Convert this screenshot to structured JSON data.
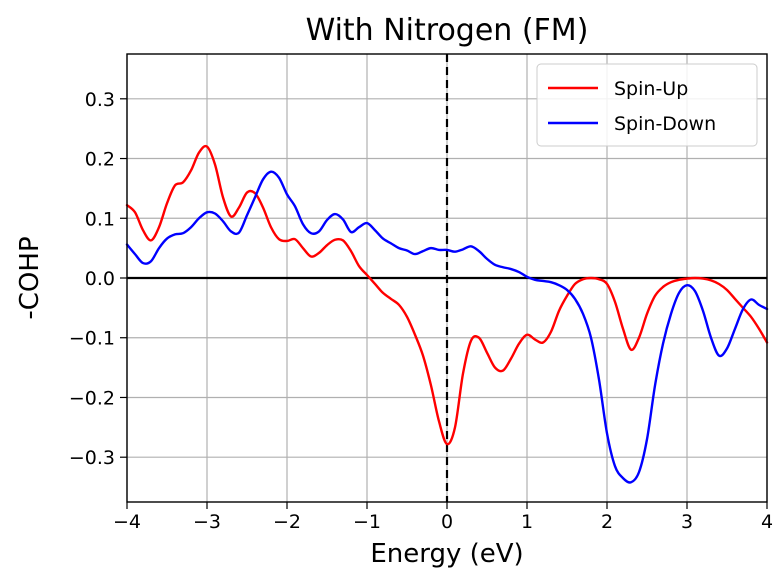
{
  "chart_data": {
    "type": "line",
    "title": "With Nitrogen (FM)",
    "xlabel": "Energy (eV)",
    "ylabel": "-COHP",
    "xlim": [
      -4,
      4
    ],
    "ylim": [
      -0.375,
      0.375
    ],
    "xticks": [
      -4,
      -3,
      -2,
      -1,
      0,
      1,
      2,
      3,
      4
    ],
    "xtick_labels": [
      "−4",
      "−3",
      "−2",
      "−1",
      "0",
      "1",
      "2",
      "3",
      "4"
    ],
    "yticks": [
      0.3,
      0.2,
      0.1,
      0.0,
      -0.1,
      -0.2,
      -0.3
    ],
    "ytick_labels": [
      "0.3",
      "0.2",
      "0.1",
      "0.0",
      "−0.1",
      "−0.2",
      "−0.3"
    ],
    "grid": true,
    "legend_position": "top-right",
    "reference_lines": {
      "horizontal_y": 0.0,
      "vertical_dashed_x": 0.0
    },
    "series": [
      {
        "name": "Spin-Up",
        "color": "#ff0000",
        "points": [
          [
            -4.0,
            0.122
          ],
          [
            -3.9,
            0.11
          ],
          [
            -3.8,
            0.08
          ],
          [
            -3.7,
            0.063
          ],
          [
            -3.6,
            0.085
          ],
          [
            -3.5,
            0.125
          ],
          [
            -3.4,
            0.155
          ],
          [
            -3.3,
            0.16
          ],
          [
            -3.2,
            0.18
          ],
          [
            -3.1,
            0.21
          ],
          [
            -3.0,
            0.22
          ],
          [
            -2.9,
            0.19
          ],
          [
            -2.8,
            0.135
          ],
          [
            -2.7,
            0.103
          ],
          [
            -2.6,
            0.118
          ],
          [
            -2.5,
            0.143
          ],
          [
            -2.4,
            0.142
          ],
          [
            -2.3,
            0.118
          ],
          [
            -2.2,
            0.085
          ],
          [
            -2.1,
            0.065
          ],
          [
            -2.0,
            0.062
          ],
          [
            -1.9,
            0.065
          ],
          [
            -1.8,
            0.05
          ],
          [
            -1.7,
            0.036
          ],
          [
            -1.6,
            0.042
          ],
          [
            -1.5,
            0.055
          ],
          [
            -1.4,
            0.064
          ],
          [
            -1.3,
            0.063
          ],
          [
            -1.2,
            0.045
          ],
          [
            -1.1,
            0.02
          ],
          [
            -1.0,
            0.005
          ],
          [
            -0.9,
            -0.01
          ],
          [
            -0.8,
            -0.025
          ],
          [
            -0.7,
            -0.035
          ],
          [
            -0.6,
            -0.045
          ],
          [
            -0.5,
            -0.065
          ],
          [
            -0.4,
            -0.095
          ],
          [
            -0.3,
            -0.13
          ],
          [
            -0.2,
            -0.18
          ],
          [
            -0.1,
            -0.24
          ],
          [
            0.0,
            -0.278
          ],
          [
            0.1,
            -0.25
          ],
          [
            0.2,
            -0.16
          ],
          [
            0.3,
            -0.105
          ],
          [
            0.4,
            -0.1
          ],
          [
            0.5,
            -0.125
          ],
          [
            0.6,
            -0.15
          ],
          [
            0.7,
            -0.155
          ],
          [
            0.8,
            -0.135
          ],
          [
            0.9,
            -0.11
          ],
          [
            1.0,
            -0.095
          ],
          [
            1.1,
            -0.103
          ],
          [
            1.2,
            -0.108
          ],
          [
            1.3,
            -0.09
          ],
          [
            1.4,
            -0.055
          ],
          [
            1.5,
            -0.03
          ],
          [
            1.6,
            -0.01
          ],
          [
            1.7,
            -0.002
          ],
          [
            1.8,
            0.0
          ],
          [
            1.9,
            -0.002
          ],
          [
            2.0,
            -0.01
          ],
          [
            2.1,
            -0.04
          ],
          [
            2.2,
            -0.085
          ],
          [
            2.3,
            -0.12
          ],
          [
            2.4,
            -0.1
          ],
          [
            2.5,
            -0.06
          ],
          [
            2.6,
            -0.03
          ],
          [
            2.7,
            -0.015
          ],
          [
            2.8,
            -0.007
          ],
          [
            2.9,
            -0.003
          ],
          [
            3.0,
            -0.001
          ],
          [
            3.1,
            0.0
          ],
          [
            3.2,
            -0.001
          ],
          [
            3.3,
            -0.004
          ],
          [
            3.4,
            -0.01
          ],
          [
            3.5,
            -0.02
          ],
          [
            3.6,
            -0.035
          ],
          [
            3.7,
            -0.05
          ],
          [
            3.8,
            -0.065
          ],
          [
            3.9,
            -0.085
          ],
          [
            4.0,
            -0.108
          ]
        ]
      },
      {
        "name": "Spin-Down",
        "color": "#0000ff",
        "points": [
          [
            -4.0,
            0.056
          ],
          [
            -3.9,
            0.04
          ],
          [
            -3.8,
            0.025
          ],
          [
            -3.7,
            0.028
          ],
          [
            -3.6,
            0.05
          ],
          [
            -3.5,
            0.066
          ],
          [
            -3.4,
            0.073
          ],
          [
            -3.3,
            0.075
          ],
          [
            -3.2,
            0.085
          ],
          [
            -3.1,
            0.1
          ],
          [
            -3.0,
            0.11
          ],
          [
            -2.9,
            0.108
          ],
          [
            -2.8,
            0.095
          ],
          [
            -2.7,
            0.078
          ],
          [
            -2.6,
            0.076
          ],
          [
            -2.5,
            0.105
          ],
          [
            -2.4,
            0.135
          ],
          [
            -2.3,
            0.165
          ],
          [
            -2.2,
            0.178
          ],
          [
            -2.1,
            0.168
          ],
          [
            -2.0,
            0.14
          ],
          [
            -1.9,
            0.12
          ],
          [
            -1.8,
            0.09
          ],
          [
            -1.7,
            0.075
          ],
          [
            -1.6,
            0.078
          ],
          [
            -1.5,
            0.097
          ],
          [
            -1.4,
            0.107
          ],
          [
            -1.3,
            0.098
          ],
          [
            -1.2,
            0.077
          ],
          [
            -1.1,
            0.085
          ],
          [
            -1.0,
            0.092
          ],
          [
            -0.9,
            0.08
          ],
          [
            -0.8,
            0.066
          ],
          [
            -0.7,
            0.058
          ],
          [
            -0.6,
            0.05
          ],
          [
            -0.5,
            0.046
          ],
          [
            -0.4,
            0.04
          ],
          [
            -0.3,
            0.045
          ],
          [
            -0.2,
            0.05
          ],
          [
            -0.1,
            0.047
          ],
          [
            0.0,
            0.047
          ],
          [
            0.1,
            0.044
          ],
          [
            0.2,
            0.048
          ],
          [
            0.3,
            0.053
          ],
          [
            0.4,
            0.045
          ],
          [
            0.5,
            0.032
          ],
          [
            0.6,
            0.022
          ],
          [
            0.7,
            0.018
          ],
          [
            0.8,
            0.015
          ],
          [
            0.9,
            0.01
          ],
          [
            1.0,
            0.002
          ],
          [
            1.1,
            -0.003
          ],
          [
            1.2,
            -0.005
          ],
          [
            1.3,
            -0.007
          ],
          [
            1.4,
            -0.012
          ],
          [
            1.5,
            -0.02
          ],
          [
            1.6,
            -0.035
          ],
          [
            1.7,
            -0.06
          ],
          [
            1.8,
            -0.1
          ],
          [
            1.9,
            -0.17
          ],
          [
            2.0,
            -0.26
          ],
          [
            2.1,
            -0.315
          ],
          [
            2.2,
            -0.335
          ],
          [
            2.3,
            -0.342
          ],
          [
            2.4,
            -0.325
          ],
          [
            2.5,
            -0.27
          ],
          [
            2.6,
            -0.18
          ],
          [
            2.7,
            -0.11
          ],
          [
            2.8,
            -0.06
          ],
          [
            2.9,
            -0.025
          ],
          [
            3.0,
            -0.012
          ],
          [
            3.1,
            -0.022
          ],
          [
            3.2,
            -0.055
          ],
          [
            3.3,
            -0.1
          ],
          [
            3.4,
            -0.13
          ],
          [
            3.5,
            -0.118
          ],
          [
            3.6,
            -0.085
          ],
          [
            3.7,
            -0.052
          ],
          [
            3.8,
            -0.036
          ],
          [
            3.9,
            -0.045
          ],
          [
            4.0,
            -0.052
          ]
        ]
      }
    ]
  }
}
